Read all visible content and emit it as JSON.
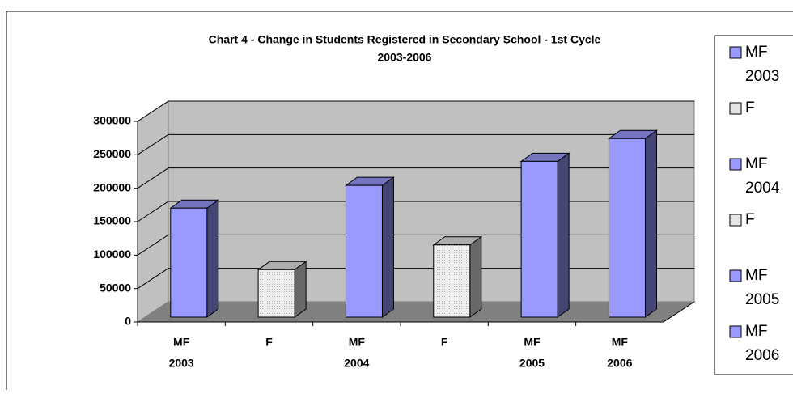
{
  "chart_data": {
    "type": "bar3d",
    "title": [
      "Chart 4 - Change in Students Registered in Secondary School - 1st Cycle",
      "2003-2006"
    ],
    "categories": [
      [
        "MF",
        "2003"
      ],
      [
        "F"
      ],
      [
        "MF",
        "2004"
      ],
      [
        "F"
      ],
      [
        "MF",
        "2005"
      ],
      [
        "MF",
        "2006"
      ]
    ],
    "values": [
      163000,
      71000,
      197000,
      108000,
      233000,
      267000
    ],
    "colors": [
      "#9999ff",
      "#e6e6e6",
      "#9999ff",
      "#e6e6e6",
      "#9999ff",
      "#9999ff"
    ],
    "ylim": [
      0,
      300000
    ],
    "yticks": [
      0,
      50000,
      100000,
      150000,
      200000,
      250000,
      300000
    ],
    "grid": true,
    "legend": "right"
  }
}
